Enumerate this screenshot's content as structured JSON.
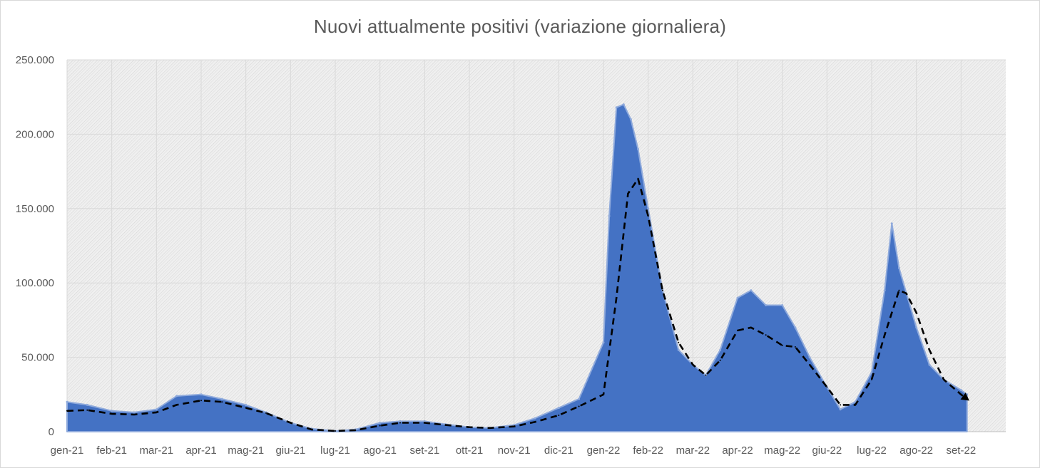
{
  "chart_data": {
    "type": "area",
    "title": "Nuovi attualmente positivi (variazione giornaliera)",
    "xlabel": "",
    "ylabel": "",
    "ylim": [
      0,
      250000
    ],
    "y_ticks": [
      "0",
      "50.000",
      "100.000",
      "150.000",
      "200.000",
      "250.000"
    ],
    "y_tick_values": [
      0,
      50000,
      100000,
      150000,
      200000,
      250000
    ],
    "x_ticks": [
      "gen-21",
      "feb-21",
      "mar-21",
      "apr-21",
      "mag-21",
      "giu-21",
      "lug-21",
      "ago-21",
      "set-21",
      "ott-21",
      "nov-21",
      "dic-21",
      "gen-22",
      "feb-22",
      "mar-22",
      "apr-22",
      "mag-22",
      "giu-22",
      "lug-22",
      "ago-22",
      "set-22"
    ],
    "grid": true,
    "legend": "none",
    "colors": {
      "area_fill": "#4472c4",
      "area_peaks": "#8faadc",
      "trend_line": "#000000",
      "plot_bg": "#ececec"
    },
    "series": [
      {
        "type": "area",
        "note_weekly_peak_samples": true,
        "x": [
          "2021-01-01",
          "2021-01-15",
          "2021-02-01",
          "2021-02-15",
          "2021-03-01",
          "2021-03-15",
          "2021-04-01",
          "2021-04-15",
          "2021-05-01",
          "2021-05-15",
          "2021-06-01",
          "2021-06-15",
          "2021-07-01",
          "2021-07-15",
          "2021-08-01",
          "2021-08-15",
          "2021-09-01",
          "2021-09-15",
          "2021-10-01",
          "2021-10-15",
          "2021-11-01",
          "2021-11-15",
          "2021-12-01",
          "2021-12-15",
          "2022-01-01",
          "2022-01-05",
          "2022-01-10",
          "2022-01-15",
          "2022-01-20",
          "2022-01-25",
          "2022-02-01",
          "2022-02-10",
          "2022-02-20",
          "2022-03-01",
          "2022-03-10",
          "2022-03-20",
          "2022-04-01",
          "2022-04-10",
          "2022-04-20",
          "2022-05-01",
          "2022-05-10",
          "2022-05-20",
          "2022-06-01",
          "2022-06-10",
          "2022-06-20",
          "2022-07-01",
          "2022-07-10",
          "2022-07-15",
          "2022-07-20",
          "2022-08-01",
          "2022-08-10",
          "2022-08-20",
          "2022-09-01",
          "2022-09-05"
        ],
        "values": [
          20000,
          18000,
          14000,
          13000,
          15000,
          24000,
          25000,
          22000,
          18000,
          13000,
          6000,
          2000,
          500,
          1500,
          6000,
          7000,
          7000,
          5000,
          3000,
          2500,
          4500,
          9000,
          16000,
          22000,
          60000,
          145000,
          218000,
          220000,
          210000,
          190000,
          150000,
          95000,
          55000,
          45000,
          38000,
          55000,
          90000,
          95000,
          85000,
          85000,
          70000,
          50000,
          30000,
          15000,
          20000,
          40000,
          95000,
          140000,
          110000,
          70000,
          45000,
          35000,
          28000,
          25000
        ]
      },
      {
        "type": "line",
        "style": "dashed",
        "x": [
          "2021-01-01",
          "2021-01-15",
          "2021-02-01",
          "2021-02-15",
          "2021-03-01",
          "2021-03-15",
          "2021-04-01",
          "2021-04-15",
          "2021-05-01",
          "2021-05-15",
          "2021-06-01",
          "2021-06-15",
          "2021-07-01",
          "2021-07-15",
          "2021-08-01",
          "2021-08-15",
          "2021-09-01",
          "2021-09-15",
          "2021-10-01",
          "2021-10-15",
          "2021-11-01",
          "2021-11-15",
          "2021-12-01",
          "2021-12-15",
          "2022-01-01",
          "2022-01-10",
          "2022-01-18",
          "2022-01-25",
          "2022-02-01",
          "2022-02-10",
          "2022-02-20",
          "2022-03-01",
          "2022-03-10",
          "2022-03-20",
          "2022-04-01",
          "2022-04-10",
          "2022-04-20",
          "2022-05-01",
          "2022-05-10",
          "2022-05-20",
          "2022-06-01",
          "2022-06-10",
          "2022-06-20",
          "2022-07-01",
          "2022-07-10",
          "2022-07-20",
          "2022-07-25",
          "2022-08-01",
          "2022-08-10",
          "2022-08-20",
          "2022-09-01",
          "2022-09-05"
        ],
        "values": [
          14000,
          14500,
          12000,
          11500,
          13000,
          18000,
          21000,
          20000,
          16000,
          12500,
          6000,
          1500,
          500,
          1000,
          4000,
          6000,
          6000,
          4500,
          3000,
          2500,
          3500,
          6500,
          11000,
          17000,
          25000,
          90000,
          160000,
          170000,
          145000,
          95000,
          60000,
          45000,
          38000,
          48000,
          68000,
          70000,
          65000,
          58000,
          57000,
          45000,
          30000,
          18000,
          18000,
          35000,
          65000,
          95000,
          93000,
          80000,
          55000,
          35000,
          25000,
          22000
        ]
      }
    ]
  }
}
